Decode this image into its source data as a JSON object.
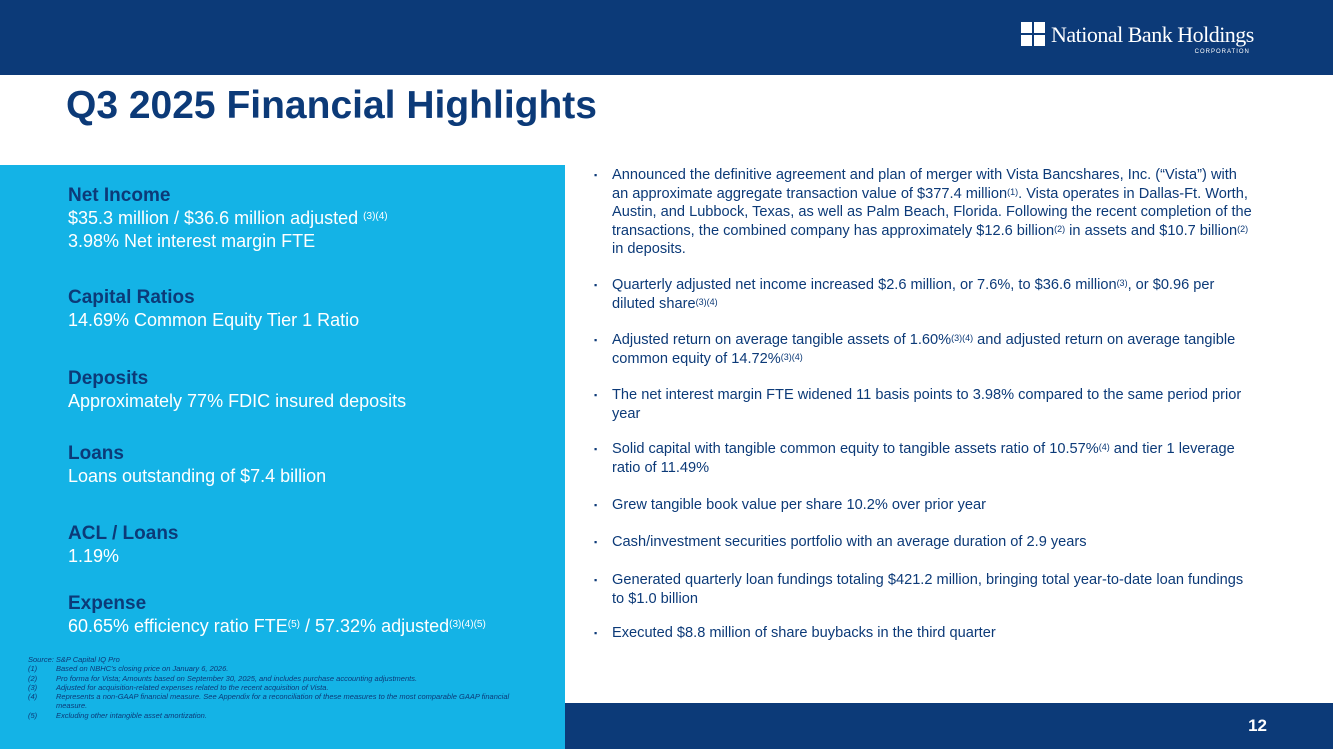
{
  "header": {
    "logo_text": "National Bank Holdings",
    "logo_sub": "CORPORATION"
  },
  "title": "Q3 2025 Financial Highlights",
  "left": [
    {
      "heading": "Net Income",
      "lines": [
        [
          {
            "t": "$35.3 million / $36.6 million adjusted "
          },
          {
            "s": "(3)(4)"
          }
        ],
        [
          {
            "t": "3.98% Net interest margin FTE"
          }
        ]
      ]
    },
    {
      "heading": "Capital Ratios",
      "lines": [
        [
          {
            "t": "14.69% Common Equity Tier 1 Ratio"
          }
        ]
      ]
    },
    {
      "heading": "Deposits",
      "lines": [
        [
          {
            "t": "Approximately 77% FDIC insured deposits"
          }
        ]
      ]
    },
    {
      "heading": "Loans",
      "lines": [
        [
          {
            "t": "Loans outstanding of $7.4 billion"
          }
        ]
      ]
    },
    {
      "heading": "ACL / Loans",
      "lines": [
        [
          {
            "t": "1.19%"
          }
        ]
      ]
    },
    {
      "heading": "Expense",
      "lines": [
        [
          {
            "t": "60.65% efficiency ratio FTE"
          },
          {
            "s": "(5)"
          },
          {
            "t": " / 57.32% adjusted"
          },
          {
            "s": "(3)(4)(5)"
          }
        ]
      ]
    }
  ],
  "footnotes": {
    "source": "Source: S&P Capital IQ Pro",
    "notes": [
      {
        "n": "(1)",
        "t": "Based on NBHC's closing price on January 6, 2026."
      },
      {
        "n": "(2)",
        "t": "Pro forma for Vista; Amounts based on September 30, 2025, and includes purchase accounting adjustments."
      },
      {
        "n": "(3)",
        "t": "Adjusted for acquisition-related expenses related to the recent acquisition of Vista."
      },
      {
        "n": "(4)",
        "t": "Represents a non-GAAP financial measure. See Appendix for a reconciliation of these measures to the most comparable GAAP financial measure."
      },
      {
        "n": "(5)",
        "t": "Excluding other intangible asset amortization."
      }
    ]
  },
  "bullets": [
    [
      {
        "t": "Announced the definitive agreement and plan of merger with Vista Bancshares, Inc. (“Vista”) with an approximate aggregate transaction value of $377.4 million"
      },
      {
        "s": "(1)"
      },
      {
        "t": ". Vista operates in Dallas-Ft. Worth, Austin, and Lubbock, Texas, as well as Palm Beach, Florida. Following the recent completion of the transactions, the combined company has approximately $12.6 billion"
      },
      {
        "s": "(2)"
      },
      {
        "t": " in assets and $10.7 billion"
      },
      {
        "s": "(2)"
      },
      {
        "t": " in deposits."
      }
    ],
    [
      {
        "t": "Quarterly adjusted net income increased $2.6 million, or 7.6%, to $36.6 million"
      },
      {
        "s": "(3)"
      },
      {
        "t": ", or $0.96 per diluted share"
      },
      {
        "s": "(3)(4)"
      }
    ],
    [
      {
        "t": "Adjusted return on average tangible assets of 1.60%"
      },
      {
        "s": "(3)(4)"
      },
      {
        "t": " and adjusted return on average tangible common equity of 14.72%"
      },
      {
        "s": "(3)(4)"
      }
    ],
    [
      {
        "t": "The net interest margin FTE widened 11 basis points to 3.98% compared to the same period prior year"
      }
    ],
    [
      {
        "t": "Solid capital with tangible common equity to tangible assets ratio of 10.57%"
      },
      {
        "s": "(4)"
      },
      {
        "t": " and tier 1 leverage ratio of 11.49%"
      }
    ],
    [
      {
        "t": "Grew tangible book value per share 10.2% over prior year"
      }
    ],
    [
      {
        "t": "Cash/investment securities portfolio with an average duration of 2.9 years"
      }
    ],
    [
      {
        "t": "Generated quarterly loan fundings totaling $421.2 million, bringing total year-to-date loan fundings to $1.0 billion"
      }
    ],
    [
      {
        "t": "Executed $8.8 million of share buybacks in the third quarter"
      }
    ]
  ],
  "page_number": "12",
  "bullet_marker": "▪"
}
